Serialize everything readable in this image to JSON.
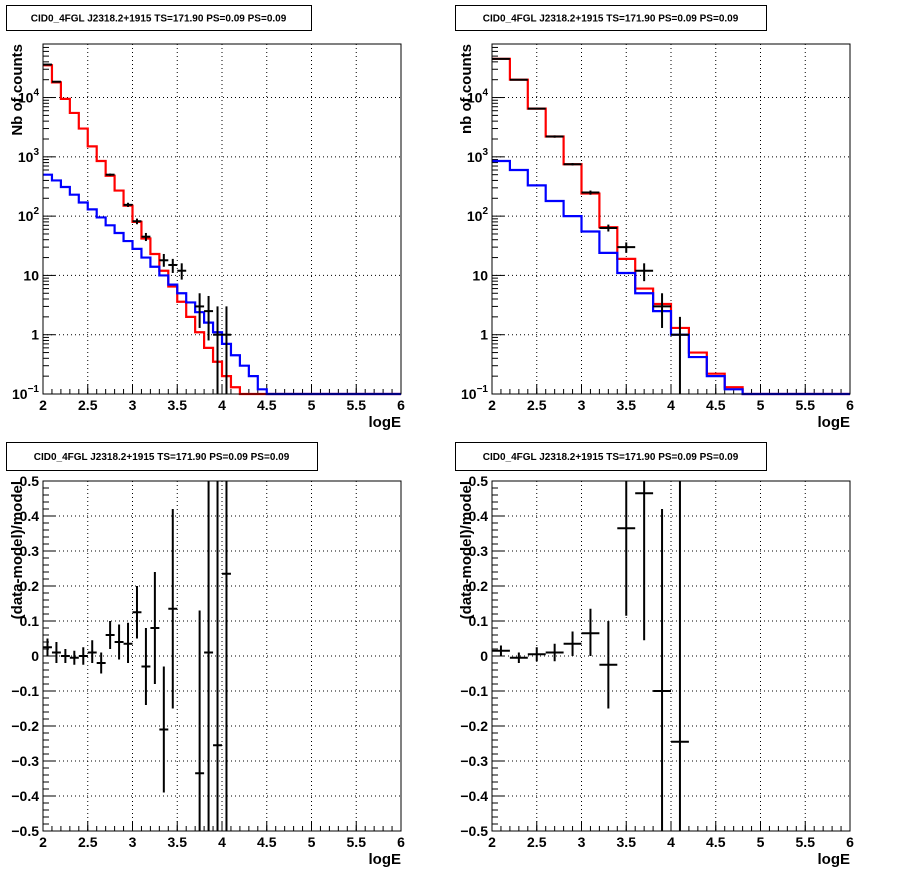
{
  "colors": {
    "total_model": "#ff0000",
    "source_model": "#0000ff",
    "data": "#000000"
  },
  "chart_data": [
    {
      "type": "line",
      "title": "CID0_4FGL J2318.2+1915 TS=171.90 PS=0.09 PS=0.09",
      "xlabel": "logE",
      "ylabel": "Nb of counts",
      "xlim": [
        2,
        6
      ],
      "ylim": [
        0.1,
        80000
      ],
      "yscale": "log",
      "grid": true,
      "xticks": [
        "2",
        "2.5",
        "3",
        "3.5",
        "4",
        "4.5",
        "5",
        "5.5",
        "6"
      ],
      "yticks": [
        {
          "value": 0.1,
          "mantissa": "10",
          "exp": "−1"
        },
        {
          "value": 1,
          "label": "1"
        },
        {
          "value": 10,
          "label": "10"
        },
        {
          "value": 100,
          "mantissa": "10",
          "exp": "2"
        },
        {
          "value": 1000,
          "mantissa": "10",
          "exp": "3"
        },
        {
          "value": 10000,
          "mantissa": "10",
          "exp": "4"
        }
      ],
      "bin_edges": [
        2,
        2.1,
        2.2,
        2.3,
        2.4,
        2.5,
        2.6,
        2.7,
        2.8,
        2.9,
        3.0,
        3.1,
        3.2,
        3.3,
        3.4,
        3.5,
        3.6,
        3.7,
        3.8,
        3.9,
        4.0,
        4.1,
        4.2,
        4.3,
        4.4,
        4.5,
        4.6,
        4.7,
        4.8,
        4.9,
        5.0,
        5.1,
        5.2,
        5.3,
        5.4,
        5.5,
        5.6,
        5.7,
        5.8,
        5.9,
        6.0
      ],
      "series": [
        {
          "role": "total_model",
          "values": [
            35000,
            18000,
            9500,
            5500,
            3000,
            1500,
            850,
            480,
            270,
            150,
            80,
            42,
            23,
            12,
            6.5,
            3.6,
            2.0,
            1.1,
            0.6,
            0.35,
            0.2,
            0.13,
            0.1,
            0.1,
            0.1,
            0.1,
            0.1,
            0.1,
            0.1,
            0.1,
            0.1,
            0.1,
            0.1,
            0.1,
            0.1,
            0.1,
            0.1,
            0.1,
            0.1,
            0.1
          ]
        },
        {
          "role": "source_model",
          "values": [
            500,
            400,
            310,
            230,
            170,
            130,
            95,
            70,
            52,
            38,
            28,
            20,
            14,
            10,
            7,
            5,
            3.5,
            2.4,
            1.6,
            1.1,
            0.7,
            0.45,
            0.3,
            0.2,
            0.12,
            0.1,
            0.1,
            0.1,
            0.1,
            0.1,
            0.1,
            0.1,
            0.1,
            0.1,
            0.1,
            0.1,
            0.1,
            0.1,
            0.1,
            0.1
          ]
        }
      ],
      "data_points": [
        {
          "x": 2.05,
          "y": 36000,
          "lo": 35000,
          "hi": 37000
        },
        {
          "x": 2.15,
          "y": 18500,
          "lo": 18000,
          "hi": 19000
        },
        {
          "x": 2.75,
          "y": 500,
          "lo": 478,
          "hi": 522
        },
        {
          "x": 2.95,
          "y": 155,
          "lo": 143,
          "hi": 168
        },
        {
          "x": 3.05,
          "y": 82,
          "lo": 73,
          "hi": 91
        },
        {
          "x": 3.15,
          "y": 45,
          "lo": 38,
          "hi": 52
        },
        {
          "x": 3.35,
          "y": 18,
          "lo": 14,
          "hi": 23
        },
        {
          "x": 3.45,
          "y": 15,
          "lo": 11,
          "hi": 19
        },
        {
          "x": 3.55,
          "y": 12,
          "lo": 8.5,
          "hi": 16
        },
        {
          "x": 3.75,
          "y": 3,
          "lo": 1.3,
          "hi": 5
        },
        {
          "x": 3.85,
          "y": 2.5,
          "lo": 0.8,
          "hi": 4.5
        },
        {
          "x": 3.95,
          "y": 1,
          "lo": 0.1,
          "hi": 3
        },
        {
          "x": 4.05,
          "y": 1,
          "lo": 0.1,
          "hi": 3
        }
      ]
    },
    {
      "type": "line",
      "title": "CID0_4FGL J2318.2+1915 TS=171.90 PS=0.09 PS=0.09",
      "xlabel": "logE",
      "ylabel": "nb of counts",
      "xlim": [
        2,
        6
      ],
      "ylim": [
        0.1,
        80000
      ],
      "yscale": "log",
      "grid": true,
      "xticks": [
        "2",
        "2.5",
        "3",
        "3.5",
        "4",
        "4.5",
        "5",
        "5.5",
        "6"
      ],
      "yticks": [
        {
          "value": 0.1,
          "mantissa": "10",
          "exp": "−1"
        },
        {
          "value": 1,
          "label": "1"
        },
        {
          "value": 10,
          "label": "10"
        },
        {
          "value": 100,
          "mantissa": "10",
          "exp": "2"
        },
        {
          "value": 1000,
          "mantissa": "10",
          "exp": "3"
        },
        {
          "value": 10000,
          "mantissa": "10",
          "exp": "4"
        }
      ],
      "bin_edges": [
        2.0,
        2.2,
        2.4,
        2.6,
        2.8,
        3.0,
        3.2,
        3.4,
        3.6,
        3.8,
        4.0,
        4.2,
        4.4,
        4.6,
        4.8,
        5.0,
        5.2,
        5.4,
        5.6,
        5.8,
        6.0
      ],
      "series": [
        {
          "role": "total_model",
          "values": [
            45000,
            20000,
            6500,
            2200,
            750,
            240,
            65,
            19,
            6,
            3.3,
            1.3,
            0.5,
            0.22,
            0.13,
            0.1,
            0.1,
            0.1,
            0.1,
            0.1,
            0.1
          ]
        },
        {
          "role": "source_model",
          "values": [
            850,
            600,
            330,
            180,
            100,
            55,
            24,
            11,
            5,
            2.5,
            1.0,
            0.42,
            0.2,
            0.12,
            0.1,
            0.1,
            0.1,
            0.1,
            0.1,
            0.1
          ]
        }
      ],
      "data_points": [
        {
          "x": 2.1,
          "y": 45000,
          "lo": 44000,
          "hi": 46000
        },
        {
          "x": 2.3,
          "y": 20000,
          "lo": 19600,
          "hi": 20400
        },
        {
          "x": 2.5,
          "y": 6500,
          "lo": 6300,
          "hi": 6700
        },
        {
          "x": 2.7,
          "y": 2200,
          "lo": 2100,
          "hi": 2300
        },
        {
          "x": 2.9,
          "y": 750,
          "lo": 715,
          "hi": 785
        },
        {
          "x": 3.1,
          "y": 250,
          "lo": 230,
          "hi": 270
        },
        {
          "x": 3.3,
          "y": 63,
          "lo": 55,
          "hi": 72
        },
        {
          "x": 3.5,
          "y": 30,
          "lo": 24,
          "hi": 36
        },
        {
          "x": 3.7,
          "y": 12,
          "lo": 8,
          "hi": 16
        },
        {
          "x": 3.9,
          "y": 3,
          "lo": 1.3,
          "hi": 5
        },
        {
          "x": 4.1,
          "y": 1,
          "lo": 0.1,
          "hi": 2
        }
      ]
    },
    {
      "type": "scatter",
      "title": "CID0_4FGL J2318.2+1915 TS=171.90 PS=0.09 PS=0.09",
      "xlabel": "logE",
      "ylabel": "(data-model)/model",
      "xlim": [
        2,
        6
      ],
      "ylim": [
        -0.5,
        0.5
      ],
      "grid": true,
      "xticks": [
        "2",
        "2.5",
        "3",
        "3.5",
        "4",
        "4.5",
        "5",
        "5.5",
        "6"
      ],
      "yticks": [
        "−0.5",
        "−0.4",
        "−0.3",
        "−0.2",
        "−0.1",
        "0",
        "0.1",
        "0.2",
        "0.3",
        "0.4",
        "0.5"
      ],
      "xerr": 0.05,
      "data_points": [
        {
          "x": 2.05,
          "y": 0.025,
          "lo": 0.0,
          "hi": 0.05
        },
        {
          "x": 2.15,
          "y": 0.01,
          "lo": -0.02,
          "hi": 0.04
        },
        {
          "x": 2.25,
          "y": 0.0,
          "lo": -0.02,
          "hi": 0.02
        },
        {
          "x": 2.35,
          "y": -0.005,
          "lo": -0.025,
          "hi": 0.015
        },
        {
          "x": 2.45,
          "y": 0.0,
          "lo": -0.025,
          "hi": 0.025
        },
        {
          "x": 2.55,
          "y": 0.01,
          "lo": -0.02,
          "hi": 0.045
        },
        {
          "x": 2.65,
          "y": -0.02,
          "lo": -0.05,
          "hi": 0.01
        },
        {
          "x": 2.75,
          "y": 0.06,
          "lo": 0.02,
          "hi": 0.1
        },
        {
          "x": 2.85,
          "y": 0.04,
          "lo": -0.01,
          "hi": 0.09
        },
        {
          "x": 2.95,
          "y": 0.035,
          "lo": -0.02,
          "hi": 0.095
        },
        {
          "x": 3.05,
          "y": 0.125,
          "lo": 0.05,
          "hi": 0.2
        },
        {
          "x": 3.15,
          "y": -0.03,
          "lo": -0.14,
          "hi": 0.08
        },
        {
          "x": 3.25,
          "y": 0.08,
          "lo": -0.08,
          "hi": 0.24
        },
        {
          "x": 3.35,
          "y": -0.21,
          "lo": -0.39,
          "hi": -0.03
        },
        {
          "x": 3.45,
          "y": 0.135,
          "lo": -0.15,
          "hi": 0.42
        },
        {
          "x": 3.75,
          "y": -0.335,
          "lo": -0.5,
          "hi": 0.13
        },
        {
          "x": 3.85,
          "y": 0.01,
          "lo": -0.5,
          "hi": 0.5
        },
        {
          "x": 3.95,
          "y": -0.255,
          "lo": -0.5,
          "hi": 0.5
        },
        {
          "x": 4.05,
          "y": 0.235,
          "lo": -0.5,
          "hi": 0.5
        }
      ]
    },
    {
      "type": "scatter",
      "title": "CID0_4FGL J2318.2+1915 TS=171.90 PS=0.09 PS=0.09",
      "xlabel": "logE",
      "ylabel": "(data-model)/model",
      "xlim": [
        2,
        6
      ],
      "ylim": [
        -0.5,
        0.5
      ],
      "grid": true,
      "xticks": [
        "2",
        "2.5",
        "3",
        "3.5",
        "4",
        "4.5",
        "5",
        "5.5",
        "6"
      ],
      "yticks": [
        "−0.5",
        "−0.4",
        "−0.3",
        "−0.2",
        "−0.1",
        "0",
        "0.1",
        "0.2",
        "0.3",
        "0.4",
        "0.5"
      ],
      "xerr": 0.1,
      "data_points": [
        {
          "x": 2.1,
          "y": 0.015,
          "lo": 0.0,
          "hi": 0.03
        },
        {
          "x": 2.3,
          "y": -0.005,
          "lo": -0.02,
          "hi": 0.01
        },
        {
          "x": 2.5,
          "y": 0.005,
          "lo": -0.015,
          "hi": 0.025
        },
        {
          "x": 2.7,
          "y": 0.01,
          "lo": -0.015,
          "hi": 0.035
        },
        {
          "x": 2.9,
          "y": 0.035,
          "lo": 0.0,
          "hi": 0.07
        },
        {
          "x": 3.1,
          "y": 0.065,
          "lo": 0.0,
          "hi": 0.135
        },
        {
          "x": 3.3,
          "y": -0.025,
          "lo": -0.15,
          "hi": 0.1
        },
        {
          "x": 3.5,
          "y": 0.365,
          "lo": 0.115,
          "hi": 0.5
        },
        {
          "x": 3.7,
          "y": 0.465,
          "lo": 0.045,
          "hi": 0.5
        },
        {
          "x": 3.9,
          "y": -0.1,
          "lo": -0.5,
          "hi": 0.42
        },
        {
          "x": 4.1,
          "y": -0.245,
          "lo": -0.5,
          "hi": 0.5
        }
      ]
    }
  ]
}
